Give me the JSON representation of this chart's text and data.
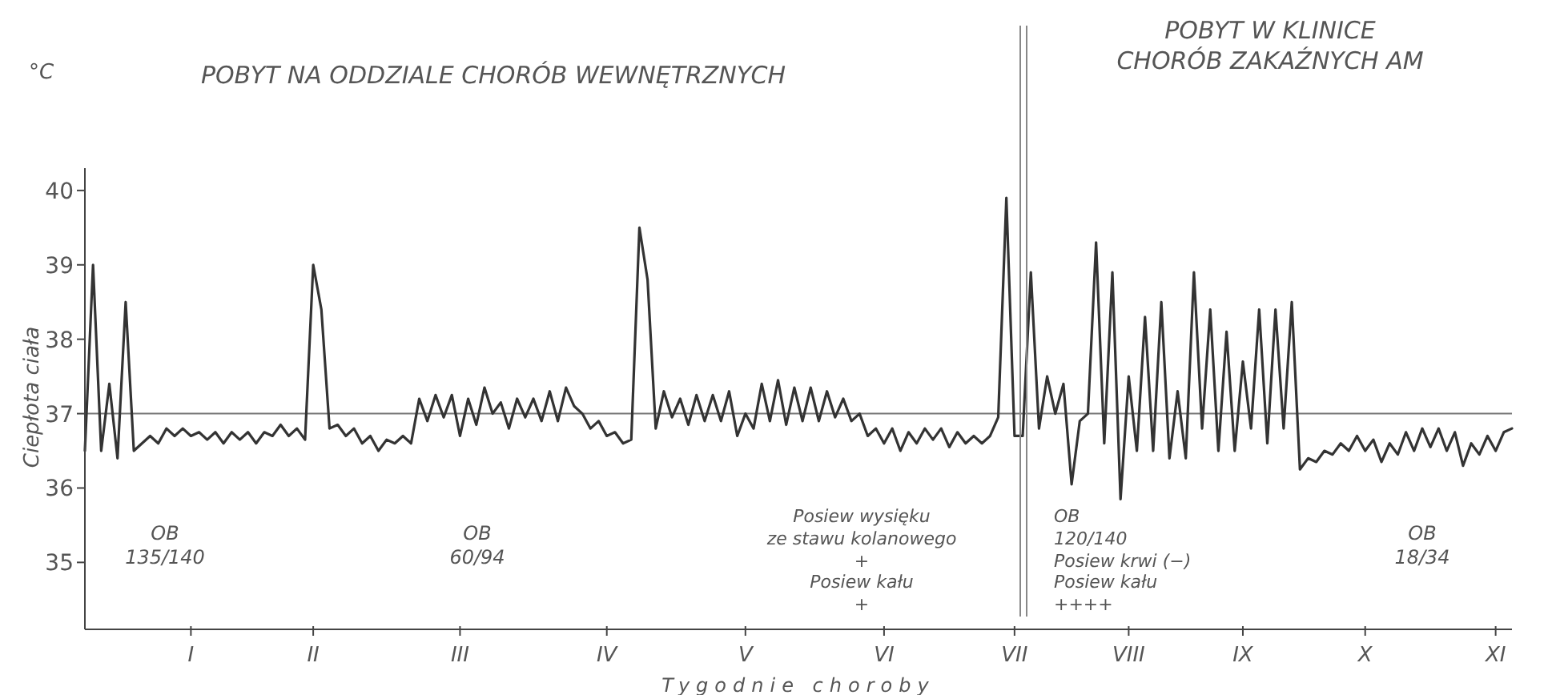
{
  "chart_data": {
    "type": "line",
    "xlabel": "Tygodnie choroby",
    "ylabel": "Ciepłota ciała",
    "annotations": [
      "°C",
      "POBYT NA ODDZIALE CHORÓB WEWNĘTRZNYCH",
      "POBYT W KLINICE\nCHORÓB ZAKAŹNYCH AM",
      "OB\n135/140",
      "OB\n60/94",
      "Posiew wysięku\nze stawu kolanowego\n+\nPosiew kału\n+",
      "OB\n120/140\nPosiew krwi (−)\nPosiew kału\n++++",
      "OB\n18/34"
    ],
    "categories": [
      null,
      null,
      null,
      null,
      null,
      null,
      null,
      null,
      null,
      null,
      null,
      null,
      null,
      "I",
      null,
      null,
      null,
      null,
      null,
      null,
      null,
      null,
      null,
      null,
      null,
      null,
      null,
      null,
      "II",
      null,
      null,
      null,
      null,
      null,
      null,
      null,
      null,
      null,
      null,
      null,
      null,
      null,
      null,
      null,
      null,
      null,
      "III",
      null,
      null,
      null,
      null,
      null,
      null,
      null,
      null,
      null,
      null,
      null,
      null,
      null,
      null,
      null,
      null,
      null,
      "IV",
      null,
      null,
      null,
      null,
      null,
      null,
      null,
      null,
      null,
      null,
      null,
      null,
      null,
      null,
      null,
      null,
      "V",
      null,
      null,
      null,
      null,
      null,
      null,
      null,
      null,
      null,
      null,
      null,
      null,
      null,
      null,
      null,
      null,
      "VI",
      null,
      null,
      null,
      null,
      null,
      null,
      null,
      null,
      null,
      null,
      null,
      null,
      null,
      null,
      null,
      "VII",
      null,
      null,
      null,
      null,
      null,
      null,
      null,
      null,
      null,
      null,
      null,
      null,
      null,
      "VIII",
      null,
      null,
      null,
      null,
      null,
      null,
      null,
      null,
      null,
      null,
      null,
      null,
      null,
      "IX",
      null,
      null,
      null,
      null,
      null,
      null,
      null,
      null,
      null,
      null,
      null,
      null,
      null,
      null,
      "X",
      null,
      null,
      null,
      null,
      null,
      null,
      null,
      null,
      null,
      null,
      null,
      null,
      null,
      null,
      null,
      "XI",
      null,
      null
    ],
    "ylim": [
      34.1,
      40.3
    ],
    "yticks": [
      35,
      36,
      37,
      38,
      39,
      40
    ],
    "ref_lines": [
      {
        "axis": "y",
        "value": 37,
        "color": "#777777"
      }
    ],
    "grid": false,
    "legend": false,
    "marker": "none",
    "line_style": "solid",
    "series": [
      {
        "color": "#333333",
        "values": [
          36.5,
          39.0,
          36.5,
          37.4,
          36.4,
          38.5,
          36.5,
          36.6,
          36.7,
          36.6,
          36.8,
          36.7,
          36.8,
          36.7,
          36.75,
          36.65,
          36.75,
          36.6,
          36.75,
          36.65,
          36.75,
          36.6,
          36.75,
          36.7,
          36.85,
          36.7,
          36.8,
          36.65,
          39.0,
          38.4,
          36.8,
          36.85,
          36.7,
          36.8,
          36.6,
          36.7,
          36.5,
          36.65,
          36.6,
          36.7,
          36.6,
          37.2,
          36.9,
          37.25,
          36.95,
          37.25,
          36.7,
          37.2,
          36.85,
          37.35,
          37.0,
          37.15,
          36.8,
          37.2,
          36.95,
          37.2,
          36.9,
          37.3,
          36.9,
          37.35,
          37.1,
          37.0,
          36.8,
          36.9,
          36.7,
          36.75,
          36.6,
          36.65,
          39.5,
          38.8,
          36.8,
          37.3,
          36.95,
          37.2,
          36.85,
          37.25,
          36.9,
          37.25,
          36.9,
          37.3,
          36.7,
          37.0,
          36.8,
          37.4,
          36.9,
          37.45,
          36.85,
          37.35,
          36.9,
          37.35,
          36.9,
          37.3,
          36.95,
          37.2,
          36.9,
          37.0,
          36.7,
          36.8,
          36.6,
          36.8,
          36.5,
          36.75,
          36.6,
          36.8,
          36.65,
          36.8,
          36.55,
          36.75,
          36.6,
          36.7,
          36.6,
          36.7,
          36.95,
          39.9,
          36.7,
          36.7,
          38.9,
          36.8,
          37.5,
          37.0,
          37.4,
          36.05,
          36.9,
          37.0,
          39.3,
          36.6,
          38.9,
          35.85,
          37.5,
          36.5,
          38.3,
          36.5,
          38.5,
          36.4,
          37.3,
          36.4,
          38.9,
          36.8,
          38.4,
          36.5,
          38.1,
          36.5,
          37.7,
          36.8,
          38.4,
          36.6,
          38.4,
          36.8,
          38.5,
          36.25,
          36.4,
          36.35,
          36.5,
          36.45,
          36.6,
          36.5,
          36.7,
          36.5,
          36.65,
          36.35,
          36.6,
          36.45,
          36.75,
          36.5,
          36.8,
          36.55,
          36.8,
          36.5,
          36.75,
          36.3,
          36.6,
          36.45,
          36.7,
          36.5,
          36.75,
          36.8
        ]
      }
    ]
  }
}
